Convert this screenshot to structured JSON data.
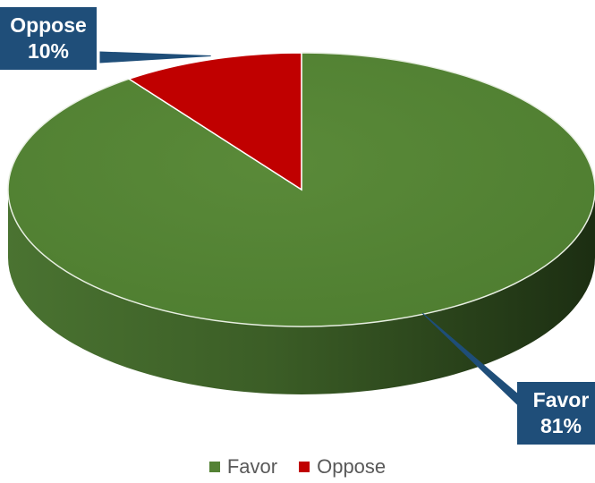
{
  "chart_data": {
    "type": "pie",
    "style": "3d",
    "categories": [
      "Favor",
      "Oppose"
    ],
    "values": [
      81,
      10
    ],
    "colors": [
      "#548235",
      "#c00000"
    ],
    "labels": [
      {
        "name": "Favor",
        "value": "81%"
      },
      {
        "name": "Oppose",
        "value": "10%"
      }
    ],
    "legend": {
      "position": "bottom",
      "entries": [
        "Favor",
        "Oppose"
      ]
    },
    "label_box_color": "#1f4e79"
  }
}
